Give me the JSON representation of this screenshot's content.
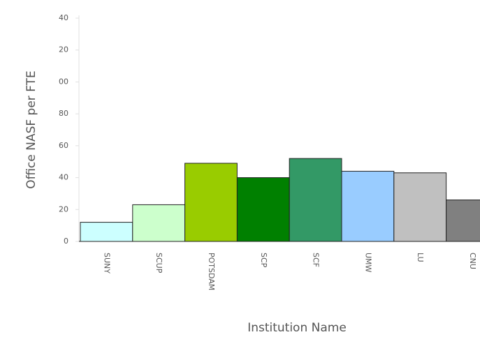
{
  "chart_data": {
    "type": "bar",
    "y_label": "Office NASF per FTE",
    "x_label": "Institution Name",
    "categories": [
      "SUNY",
      "SCUP",
      "POTSDAM",
      "SCP",
      "SCF",
      "UMW",
      "LU",
      "CNU"
    ],
    "values": [
      12,
      23,
      49,
      40,
      52,
      44,
      43,
      26
    ],
    "colors": [
      "#ccffff",
      "#ccffcc",
      "#99cc00",
      "#008000",
      "#339966",
      "#99ccff",
      "#c0c0c0",
      "#808080"
    ],
    "ylim": [
      0,
      140
    ],
    "yticks": [
      0,
      20,
      40,
      60,
      80,
      {
        "value": 100,
        "label": "00"
      },
      {
        "value": 120,
        "label": "20"
      },
      {
        "value": 140,
        "label": "40"
      }
    ],
    "grid": false
  }
}
